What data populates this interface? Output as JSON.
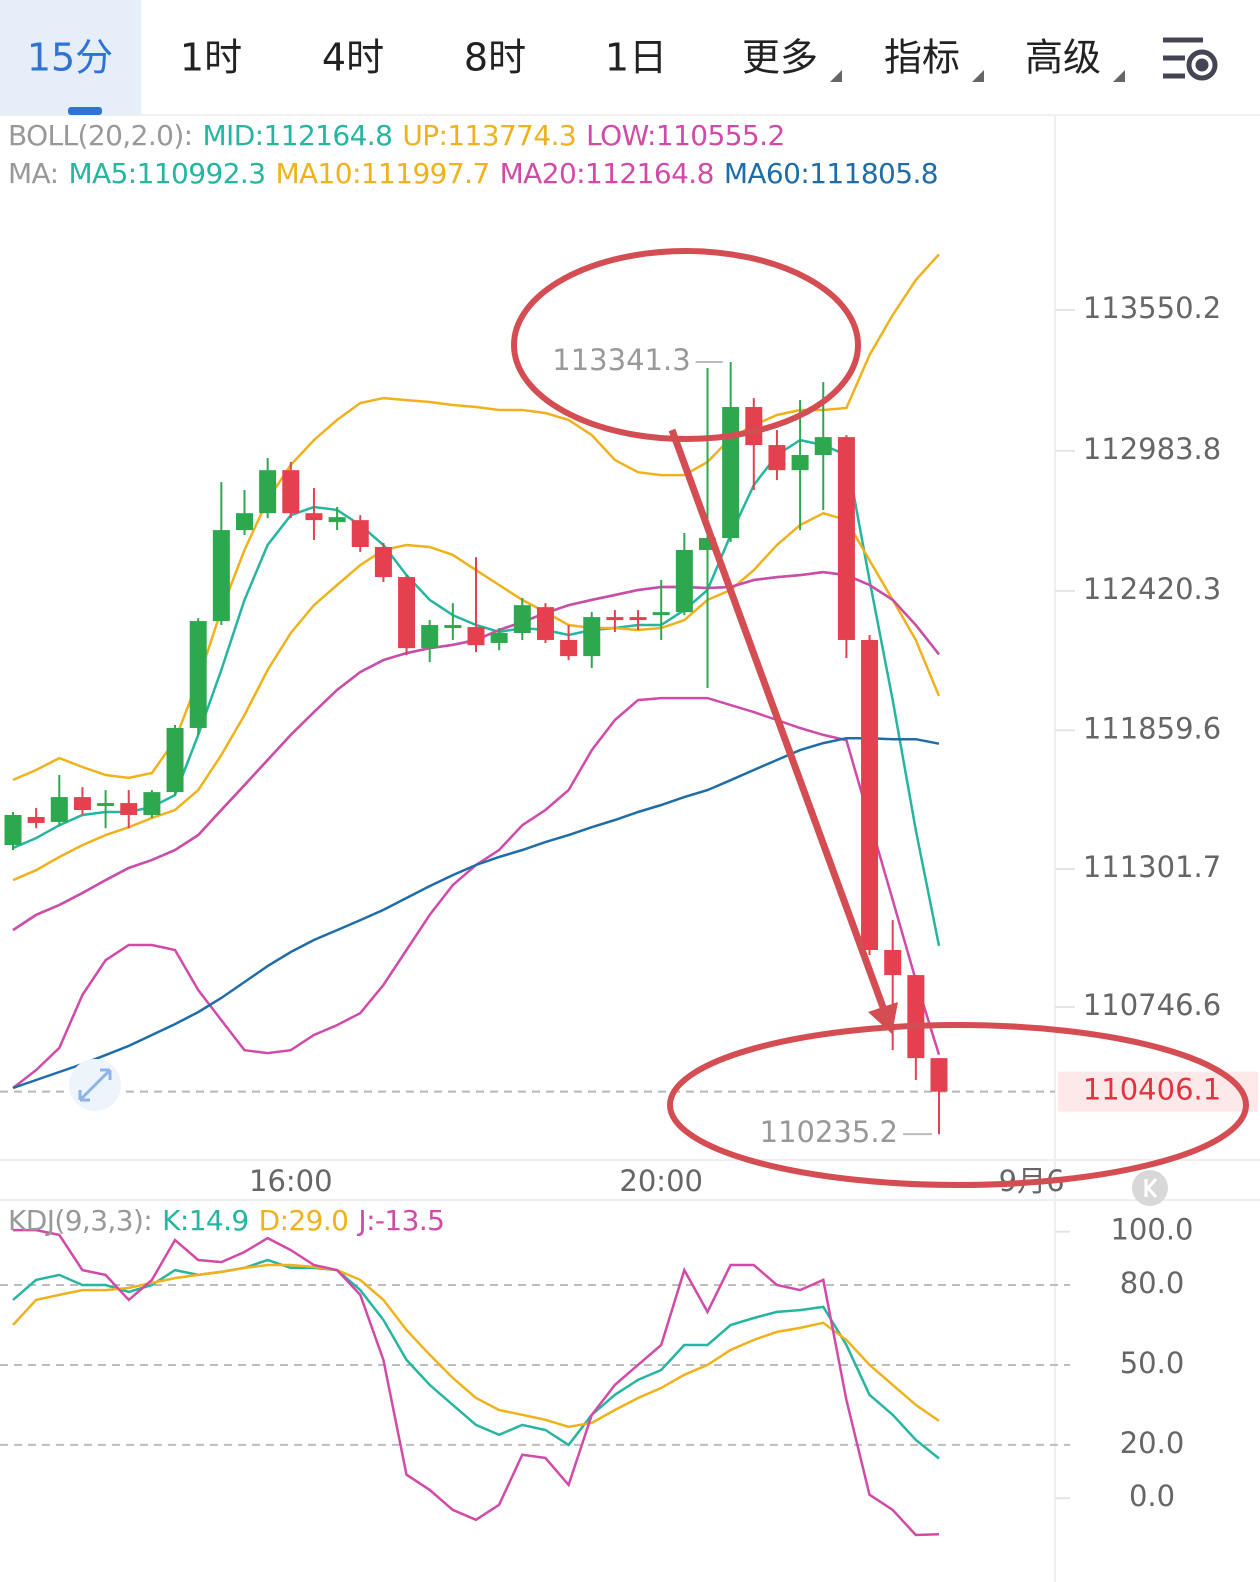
{
  "tabs": [
    {
      "label": "15分",
      "active": true
    },
    {
      "label": "1时"
    },
    {
      "label": "4时"
    },
    {
      "label": "8时"
    },
    {
      "label": "1日"
    },
    {
      "label": "更多",
      "dropdown": true
    },
    {
      "label": "指标",
      "dropdown": true
    },
    {
      "label": "高级",
      "dropdown": true
    }
  ],
  "chart_data": [
    {
      "type": "candlestick",
      "indicator_labels": [
        "BOLL(20,2.0):",
        "MA:"
      ],
      "categories": [
        null,
        null,
        null,
        null,
        null,
        null,
        null,
        null,
        null,
        null,
        null,
        null,
        "16:00",
        null,
        null,
        null,
        null,
        null,
        null,
        null,
        null,
        null,
        null,
        null,
        null,
        null,
        null,
        null,
        "20:00",
        null,
        null,
        null,
        null,
        null,
        null,
        null,
        null,
        null,
        null,
        null,
        null
      ],
      "next_day_label": "9月6",
      "up_color": "#2ea84e",
      "down_color": "#e5404f",
      "open": [
        111398,
        111511,
        111491,
        111591,
        111555,
        111567,
        111519,
        111611,
        111869,
        112299,
        112665,
        112733,
        112906,
        112733,
        112697,
        112705,
        112597,
        112476,
        112190,
        112271,
        112275,
        112211,
        112251,
        112355,
        112223,
        112158,
        112315,
        112315,
        112323,
        112335,
        112585,
        112633,
        113160,
        113007,
        112906,
        112967,
        113039,
        112223,
        110976,
        110875,
        110541
      ],
      "high": [
        111531,
        111547,
        111680,
        111631,
        111619,
        111619,
        111619,
        111881,
        112311,
        112858,
        112826,
        112955,
        112939,
        112834,
        112758,
        112725,
        112613,
        112484,
        112303,
        112371,
        112556,
        112271,
        112392,
        112371,
        112283,
        112335,
        112343,
        112343,
        112464,
        112653,
        113317,
        113341.3,
        113196,
        113067,
        113188,
        113260,
        113047,
        112243,
        111096,
        110875,
        110541
      ],
      "low": [
        111378,
        111466,
        111474,
        111519,
        111466,
        111466,
        111507,
        111599,
        111840,
        112283,
        112645,
        112713,
        112713,
        112625,
        112665,
        112577,
        112456,
        112162,
        112134,
        112223,
        112174,
        112182,
        112223,
        112211,
        112142,
        112110,
        112255,
        112263,
        112223,
        112323,
        112030,
        112617,
        112826,
        112866,
        112665,
        112746,
        112150,
        110956,
        110573,
        110453,
        110235.2
      ],
      "close": [
        111519,
        111487,
        111591,
        111539,
        111567,
        111519,
        111611,
        111869,
        112299,
        112665,
        112733,
        112906,
        112733,
        112705,
        112717,
        112597,
        112476,
        112190,
        112283,
        112283,
        112202,
        112251,
        112363,
        112223,
        112158,
        112315,
        112303,
        112303,
        112335,
        112585,
        112633,
        113160,
        113007,
        112906,
        112967,
        113039,
        112223,
        110976,
        110875,
        110541,
        110406.1
      ],
      "series": [
        {
          "name": "MID:112164.8",
          "group": 0,
          "color": "#26b5a0",
          "values": [
            111056,
            111117,
            111157,
            111205,
            111257,
            111306,
            111338,
            111378,
            111438,
            111539,
            111639,
            111740,
            111841,
            111933,
            112022,
            112094,
            112142,
            112170,
            112190,
            112203,
            112223,
            112263,
            112295,
            112331,
            112363,
            112384,
            112404,
            112424,
            112436,
            112436,
            112432,
            112436,
            112464,
            112476,
            112484,
            112496,
            112484,
            112444,
            112384,
            112283,
            112164.8
          ]
        },
        {
          "name": "UP:113774.3",
          "group": 0,
          "color": "#efb21c",
          "values": [
            111660,
            111700,
            111748,
            111712,
            111680,
            111668,
            111688,
            111820,
            112062,
            112343,
            112585,
            112786,
            112927,
            113027,
            113108,
            113176,
            113196,
            113188,
            113180,
            113168,
            113160,
            113148,
            113148,
            113136,
            113108,
            113047,
            112947,
            112898,
            112886,
            112886,
            112939,
            113035,
            113087,
            113128,
            113148,
            113148,
            113156,
            113369,
            113530,
            113671,
            113774.3
          ]
        },
        {
          "name": "LOW:110555.2",
          "group": 0,
          "color": "#d24aa8",
          "values": [
            110421,
            110493,
            110582,
            110795,
            110935,
            110996,
            110996,
            110976,
            110815,
            110694,
            110573,
            110561,
            110573,
            110634,
            110674,
            110722,
            110835,
            110976,
            111117,
            111237,
            111318,
            111378,
            111478,
            111539,
            111619,
            111780,
            111901,
            111981,
            111989,
            111989,
            111989,
            111961,
            111933,
            111901,
            111869,
            111841,
            111820,
            111499,
            111177,
            110855,
            110555.2
          ]
        },
        {
          "name": "MA5:110992.3",
          "group": 1,
          "color": "#26b5a0",
          "values": [
            111386,
            111426,
            111478,
            111519,
            111531,
            111531,
            111551,
            111599,
            111841,
            112102,
            112384,
            112605,
            112725,
            112758,
            112746,
            112685,
            112605,
            112484,
            112384,
            112323,
            112283,
            112255,
            112271,
            112263,
            112243,
            112263,
            112271,
            112283,
            112283,
            112343,
            112424,
            112645,
            112846,
            112967,
            113027,
            113007,
            112967,
            112464,
            111981,
            111458,
            110992.3
          ]
        },
        {
          "name": "MA10:111997.7",
          "group": 1,
          "color": "#efb21c",
          "values": [
            111257,
            111297,
            111350,
            111398,
            111438,
            111470,
            111507,
            111539,
            111619,
            111760,
            111921,
            112102,
            112251,
            112363,
            112444,
            112524,
            112585,
            112605,
            112597,
            112565,
            112504,
            112444,
            112384,
            112335,
            112283,
            112271,
            112271,
            112263,
            112271,
            112303,
            112384,
            112424,
            112504,
            112605,
            112685,
            112733,
            112705,
            112544,
            112384,
            112223,
            111997.7
          ]
        },
        {
          "name": "MA20:112164.8",
          "group": 1,
          "color": "#d24aa8",
          "values": [
            111056,
            111117,
            111157,
            111205,
            111257,
            111306,
            111338,
            111378,
            111438,
            111539,
            111639,
            111740,
            111841,
            111933,
            112022,
            112094,
            112142,
            112170,
            112190,
            112203,
            112223,
            112263,
            112295,
            112331,
            112363,
            112384,
            112404,
            112424,
            112436,
            112436,
            112432,
            112436,
            112464,
            112476,
            112484,
            112496,
            112484,
            112444,
            112384,
            112283,
            112164.8
          ]
        },
        {
          "name": "MA60:111805.8",
          "group": 1,
          "color": "#1f6da8",
          "values": [
            110421,
            110453,
            110485,
            110517,
            110553,
            110590,
            110634,
            110678,
            110726,
            110783,
            110847,
            110911,
            110968,
            111016,
            111056,
            111096,
            111137,
            111185,
            111233,
            111277,
            111318,
            111350,
            111378,
            111410,
            111438,
            111470,
            111499,
            111531,
            111559,
            111591,
            111619,
            111659,
            111700,
            111740,
            111780,
            111808,
            111828,
            111828,
            111824,
            111824,
            111805.8
          ]
        }
      ],
      "ylim": [
        110131.2,
        114334.6
      ],
      "yticks": [
        113550.2,
        112983.8,
        112420.3,
        111859.6,
        111301.7,
        110746.6
      ]
    },
    {
      "type": "line",
      "title": "KDJ(9,3,3):",
      "series": [
        {
          "name": "K:14.9",
          "color": "#26b5a0",
          "values": [
            74.4,
            81.9,
            83.8,
            80,
            80,
            77.4,
            80,
            85.6,
            83.8,
            84.9,
            86.4,
            89.4,
            86.4,
            86.4,
            85.6,
            78.1,
            66.9,
            51.9,
            42.5,
            35,
            27.5,
            23.8,
            27.5,
            25.6,
            20,
            31.3,
            38.8,
            44.4,
            48.1,
            57.5,
            57.5,
            65,
            67.6,
            69.9,
            70.6,
            71.8,
            57.5,
            38.8,
            31.3,
            21.9,
            14.9
          ]
        },
        {
          "name": "D:29.0",
          "color": "#efb21c",
          "values": [
            65,
            74.4,
            76.3,
            78.1,
            78.1,
            78.9,
            80.8,
            82.6,
            83.8,
            84.9,
            86.4,
            87.5,
            87.5,
            86.8,
            85.6,
            81.9,
            74.4,
            63.1,
            53.8,
            45.1,
            37.6,
            33.1,
            31.3,
            29.4,
            26.8,
            28.3,
            33.1,
            37.6,
            41.4,
            46.3,
            50,
            55.6,
            59.4,
            62.4,
            63.9,
            65.8,
            59.4,
            50,
            42.5,
            35,
            29.0
          ]
        },
        {
          "name": "J:-13.5",
          "color": "#d24aa8",
          "values": [
            100.6,
            100.6,
            98.8,
            85.6,
            83.8,
            74.4,
            81.9,
            96.9,
            89.4,
            88.6,
            92.4,
            97.6,
            93.1,
            87.5,
            85.6,
            76.3,
            51.9,
            8.8,
            3.1,
            -4.4,
            -8.1,
            -2.5,
            16.3,
            15.1,
            5,
            31.3,
            42.5,
            50,
            57.5,
            85.6,
            69.9,
            87.5,
            87.5,
            80,
            78.1,
            81.9,
            36.9,
            1.3,
            -4.4,
            -13.8,
            -13.5
          ]
        }
      ],
      "ylim": [
        -23.2,
        111.9
      ],
      "yticks": [
        {
          "value": 100,
          "label": "100.0"
        },
        {
          "value": 80,
          "label": "80.0",
          "grid": true
        },
        {
          "value": 50,
          "label": "50.0",
          "grid": true
        },
        {
          "value": 20,
          "label": "20.0",
          "grid": true
        },
        {
          "value": 0,
          "label": "0.0"
        }
      ]
    }
  ]
}
